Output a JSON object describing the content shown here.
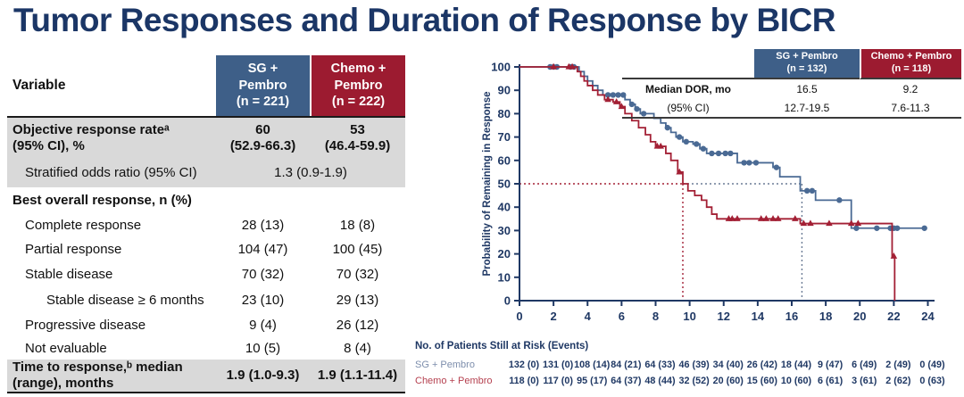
{
  "title": "Tumor Responses and Duration of Response by BICR",
  "colors": {
    "title_navy": "#1b3666",
    "axis_navy": "#1f3864",
    "sg_blue": "#4a6a94",
    "chemo_red": "#a32035",
    "header_blue_bg": "#3e5f88",
    "header_red_bg": "#9c1b30",
    "gray_row_bg": "#d9d9d9",
    "ref_gray": "#6b7b95"
  },
  "left_table": {
    "variable_header": "Variable",
    "col1_header": "SG +\nPembro\n(n = 221)",
    "col2_header": "Chemo +\nPembro\n(n = 222)",
    "rows": [
      {
        "label": "Objective response rateᵃ\n(95% CI), %",
        "v1": "60\n(52.9-66.3)",
        "v2": "53\n(46.4-59.9)",
        "indent": 0,
        "bold": true,
        "gray": true,
        "h": 46
      },
      {
        "label": "Stratified odds ratio (95% CI)",
        "span": "1.3 (0.9-1.9)",
        "indent": 1,
        "bold": false,
        "gray": true,
        "h": 32
      },
      {
        "label": "Best overall response, n (%)",
        "header_only": true,
        "indent": 0,
        "bold": true,
        "gray": false,
        "h": 30
      },
      {
        "label": "Complete response",
        "v1": "28 (13)",
        "v2": "18 (8)",
        "indent": 1,
        "bold": false,
        "gray": false,
        "h": 26
      },
      {
        "label": "Partial response",
        "v1": "104 (47)",
        "v2": "100 (45)",
        "indent": 1,
        "bold": false,
        "gray": false,
        "h": 27
      },
      {
        "label": "Stable disease",
        "v1": "70 (32)",
        "v2": "70 (32)",
        "indent": 1,
        "bold": false,
        "gray": false,
        "h": 29
      },
      {
        "label": "Stable disease ≥ 6 months",
        "v1": "23 (10)",
        "v2": "29 (13)",
        "indent": 2,
        "bold": false,
        "gray": false,
        "h": 29
      },
      {
        "label": "Progressive disease",
        "v1": "9 (4)",
        "v2": "26 (12)",
        "indent": 1,
        "bold": false,
        "gray": false,
        "h": 27
      },
      {
        "label": "Not evaluable",
        "v1": "10 (5)",
        "v2": "8 (4)",
        "indent": 1,
        "bold": false,
        "gray": false,
        "h": 25
      },
      {
        "label": "Time to response,ᵇ median\n(range), months",
        "v1": "1.9 (1.0-9.3)",
        "v2": "1.9 (1.1-11.4)",
        "indent": 0,
        "bold": true,
        "gray": true,
        "h": 36
      }
    ]
  },
  "chart_data": {
    "type": "line",
    "subtype": "kaplan-meier-step",
    "title": "",
    "xlabel": "",
    "ylabel": "Probability of Remaining in Response",
    "xlim": [
      0,
      24
    ],
    "ylim": [
      0,
      100
    ],
    "xticks": [
      0,
      2,
      4,
      6,
      8,
      10,
      12,
      14,
      16,
      18,
      20,
      22,
      24
    ],
    "yticks": [
      0,
      10,
      20,
      30,
      40,
      50,
      60,
      70,
      80,
      90,
      100
    ],
    "grid": false,
    "series": [
      {
        "name": "SG + Pembro",
        "color": "#4a6a94",
        "marker": "circle",
        "median_months": 16.5,
        "steps": [
          [
            0,
            100
          ],
          [
            3.5,
            98
          ],
          [
            3.8,
            96
          ],
          [
            4.0,
            94
          ],
          [
            4.3,
            92
          ],
          [
            4.6,
            90
          ],
          [
            4.9,
            88
          ],
          [
            6.2,
            86
          ],
          [
            6.5,
            84
          ],
          [
            6.8,
            82
          ],
          [
            7.1,
            80
          ],
          [
            7.9,
            78
          ],
          [
            8.3,
            76
          ],
          [
            8.6,
            74
          ],
          [
            8.9,
            72
          ],
          [
            9.2,
            70
          ],
          [
            9.6,
            68
          ],
          [
            10.2,
            67
          ],
          [
            10.6,
            65
          ],
          [
            11.0,
            63
          ],
          [
            12.8,
            59
          ],
          [
            14.9,
            57
          ],
          [
            15.3,
            53
          ],
          [
            16.5,
            47
          ],
          [
            17.4,
            43
          ],
          [
            19.5,
            31
          ]
        ],
        "end_x": 23.85,
        "censors": [
          [
            1.8,
            100
          ],
          [
            2.0,
            100
          ],
          [
            2.2,
            100
          ],
          [
            3.0,
            100
          ],
          [
            3.2,
            100
          ],
          [
            5.2,
            88
          ],
          [
            5.5,
            88
          ],
          [
            5.8,
            88
          ],
          [
            6.1,
            88
          ],
          [
            6.6,
            84
          ],
          [
            6.9,
            82
          ],
          [
            7.3,
            80
          ],
          [
            8.7,
            74
          ],
          [
            9.4,
            70
          ],
          [
            9.8,
            68
          ],
          [
            10.4,
            67
          ],
          [
            10.8,
            65
          ],
          [
            11.3,
            63
          ],
          [
            11.7,
            63
          ],
          [
            12.1,
            63
          ],
          [
            12.4,
            63
          ],
          [
            13.2,
            59
          ],
          [
            13.5,
            59
          ],
          [
            13.9,
            59
          ],
          [
            15.1,
            57
          ],
          [
            16.9,
            47
          ],
          [
            17.2,
            47
          ],
          [
            18.8,
            43
          ],
          [
            19.8,
            31
          ],
          [
            21.0,
            31
          ],
          [
            21.8,
            31
          ],
          [
            22.0,
            31
          ],
          [
            22.2,
            31
          ],
          [
            23.8,
            31
          ]
        ]
      },
      {
        "name": "Chemo + Pembro",
        "color": "#a32035",
        "marker": "triangle",
        "median_months": 9.2,
        "steps": [
          [
            0,
            100
          ],
          [
            3.4,
            98
          ],
          [
            3.6,
            96
          ],
          [
            3.8,
            94
          ],
          [
            4.0,
            92
          ],
          [
            4.3,
            90
          ],
          [
            4.6,
            88
          ],
          [
            5.0,
            86
          ],
          [
            5.5,
            85
          ],
          [
            5.9,
            83
          ],
          [
            6.2,
            80
          ],
          [
            6.6,
            77
          ],
          [
            7.0,
            74
          ],
          [
            7.4,
            71
          ],
          [
            7.7,
            68
          ],
          [
            8.0,
            66
          ],
          [
            8.6,
            63
          ],
          [
            8.9,
            60
          ],
          [
            9.3,
            55
          ],
          [
            9.6,
            50
          ],
          [
            9.9,
            47
          ],
          [
            10.3,
            45
          ],
          [
            10.7,
            43
          ],
          [
            11.0,
            40
          ],
          [
            11.3,
            37
          ],
          [
            11.6,
            35
          ],
          [
            16.5,
            33
          ],
          [
            21.9,
            19
          ],
          [
            22.05,
            0
          ]
        ],
        "end_x": 22.05,
        "censors": [
          [
            2.0,
            100
          ],
          [
            2.9,
            100
          ],
          [
            3.1,
            100
          ],
          [
            5.2,
            86
          ],
          [
            5.7,
            85
          ],
          [
            6.0,
            83
          ],
          [
            8.1,
            66
          ],
          [
            8.3,
            66
          ],
          [
            9.4,
            55
          ],
          [
            12.3,
            35
          ],
          [
            12.5,
            35
          ],
          [
            12.8,
            35
          ],
          [
            14.2,
            35
          ],
          [
            14.5,
            35
          ],
          [
            14.9,
            35
          ],
          [
            15.2,
            35
          ],
          [
            16.2,
            35
          ],
          [
            16.7,
            33
          ],
          [
            17.1,
            33
          ],
          [
            18.2,
            33
          ],
          [
            19.5,
            33
          ],
          [
            19.9,
            33
          ],
          [
            22.0,
            19
          ]
        ]
      }
    ],
    "reference_lines": {
      "h50_red_from": 0,
      "h50_red_to": 9.6,
      "h50_gray_from": 9.6,
      "h50_gray_to": 16.6,
      "v_red_x": 9.6,
      "v_gray_x": 16.6,
      "y_value": 50
    },
    "dor_table": {
      "col1_header": "SG + Pembro\n(n = 132)",
      "col2_header": "Chemo + Pembro\n(n = 118)",
      "rows": [
        {
          "label": "Median DOR, mo",
          "v1": "16.5",
          "v2": "9.2"
        },
        {
          "label": "(95% CI)",
          "v1": "12.7-19.5",
          "v2": "7.6-11.3"
        }
      ]
    },
    "at_risk": {
      "title": "No. of Patients Still at Risk (Events)",
      "times": [
        0,
        2,
        4,
        6,
        8,
        10,
        12,
        14,
        16,
        18,
        20,
        22,
        24
      ],
      "rows": [
        {
          "name": "SG + Pembro",
          "values": [
            "132 (0)",
            "131 (0)",
            "108 (14)",
            "84 (21)",
            "64 (33)",
            "46 (39)",
            "34 (40)",
            "26 (42)",
            "18 (44)",
            "9 (47)",
            "6 (49)",
            "2 (49)",
            "0 (49)"
          ]
        },
        {
          "name": "Chemo + Pembro",
          "values": [
            "118 (0)",
            "117 (0)",
            "95 (17)",
            "64 (37)",
            "48 (44)",
            "32 (52)",
            "20 (60)",
            "15 (60)",
            "10 (60)",
            "6 (61)",
            "3 (61)",
            "2 (62)",
            "0 (63)"
          ]
        }
      ]
    }
  }
}
